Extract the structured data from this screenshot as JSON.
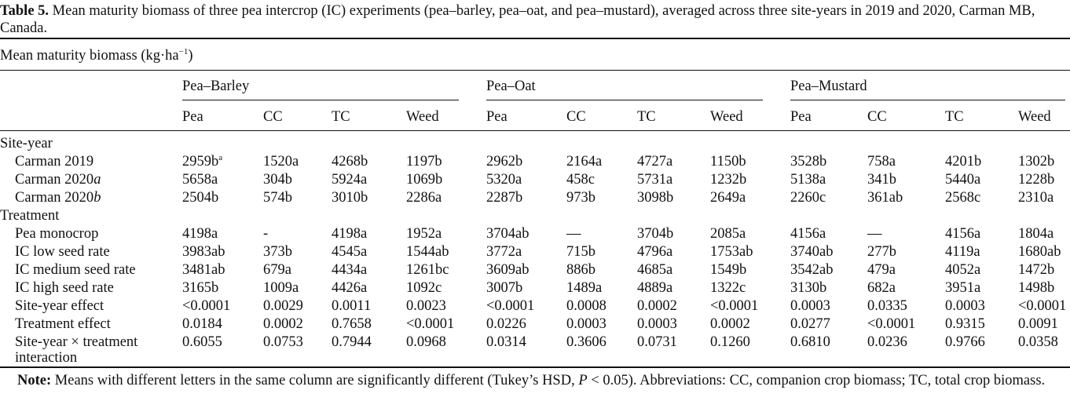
{
  "caption": {
    "label": "Table 5.",
    "text": "Mean maturity biomass of three pea intercrop (IC) experiments (pea–barley, pea–oat, and pea–mustard), averaged across three site-years in 2019 and 2020, Carman MB, Canada."
  },
  "unit_header": {
    "text": "Mean maturity biomass (kg·ha",
    "exponent": "−1",
    "close": ")"
  },
  "groups": [
    "Pea–Barley",
    "Pea–Oat",
    "Pea–Mustard"
  ],
  "columns": [
    "Pea",
    "CC",
    "TC",
    "Weed",
    "Pea",
    "CC",
    "TC",
    "Weed",
    "Pea",
    "CC",
    "TC",
    "Weed"
  ],
  "sections": [
    {
      "title": "Site-year",
      "rows": [
        {
          "label": "Carman 2019",
          "label_suffix": "",
          "values": [
            "2959b",
            "1520a",
            "4268b",
            "1197b",
            "2962b",
            "2164a",
            "4727a",
            "1150b",
            "3528b",
            "758a",
            "4201b",
            "1302b"
          ],
          "first_sup": "a"
        },
        {
          "label": "Carman 2020",
          "label_suffix": "a",
          "values": [
            "5658a",
            "304b",
            "5924a",
            "1069b",
            "5320a",
            "458c",
            "5731a",
            "1232b",
            "5138a",
            "341b",
            "5440a",
            "1228b"
          ]
        },
        {
          "label": "Carman 2020",
          "label_suffix": "b",
          "values": [
            "2504b",
            "574b",
            "3010b",
            "2286a",
            "2287b",
            "973b",
            "3098b",
            "2649a",
            "2260c",
            "361ab",
            "2568c",
            "2310a"
          ]
        }
      ]
    },
    {
      "title": "Treatment",
      "rows": [
        {
          "label": "Pea monocrop",
          "label_suffix": "",
          "values": [
            "4198a",
            "-",
            "4198a",
            "1952a",
            "3704ab",
            "—",
            "3704b",
            "2085a",
            "4156a",
            "—",
            "4156a",
            "1804a"
          ]
        },
        {
          "label": "IC low seed rate",
          "label_suffix": "",
          "values": [
            "3983ab",
            "373b",
            "4545a",
            "1544ab",
            "3772a",
            "715b",
            "4796a",
            "1753ab",
            "3740ab",
            "277b",
            "4119a",
            "1680ab"
          ]
        },
        {
          "label": "IC medium seed rate",
          "label_suffix": "",
          "values": [
            "3481ab",
            "679a",
            "4434a",
            "1261bc",
            "3609ab",
            "886b",
            "4685a",
            "1549b",
            "3542ab",
            "479a",
            "4052a",
            "1472b"
          ]
        },
        {
          "label": "IC high seed rate",
          "label_suffix": "",
          "values": [
            "3165b",
            "1009a",
            "4426a",
            "1092c",
            "3007b",
            "1489a",
            "4889a",
            "1322c",
            "3130b",
            "682a",
            "3951a",
            "1498b"
          ]
        },
        {
          "label": "Site-year effect",
          "label_suffix": "",
          "values": [
            "<0.0001",
            "0.0029",
            "0.0011",
            "0.0023",
            "<0.0001",
            "0.0008",
            "0.0002",
            "<0.0001",
            "0.0003",
            "0.0335",
            "0.0003",
            "<0.0001"
          ]
        },
        {
          "label": "Treatment effect",
          "label_suffix": "",
          "values": [
            "0.0184",
            "0.0002",
            "0.7658",
            "<0.0001",
            "0.0226",
            "0.0003",
            "0.0003",
            "0.0002",
            "0.0277",
            "<0.0001",
            "0.9315",
            "0.0091"
          ]
        },
        {
          "label": "Site-year × treatment",
          "label_line2": "interaction",
          "label_suffix": "",
          "values": [
            "0.6055",
            "0.0753",
            "0.7944",
            "0.0968",
            "0.0314",
            "0.3606",
            "0.0731",
            "0.1260",
            "0.6810",
            "0.0236",
            "0.9766",
            "0.0358"
          ]
        }
      ]
    }
  ],
  "note": {
    "label": "Note:",
    "text_before_p": "Means with different letters in the same column are significantly different (Tukey’s HSD,",
    "p_symbol": "P",
    "text_after_p": "< 0.05). Abbreviations: CC, companion crop biomass; TC, total crop biomass."
  }
}
